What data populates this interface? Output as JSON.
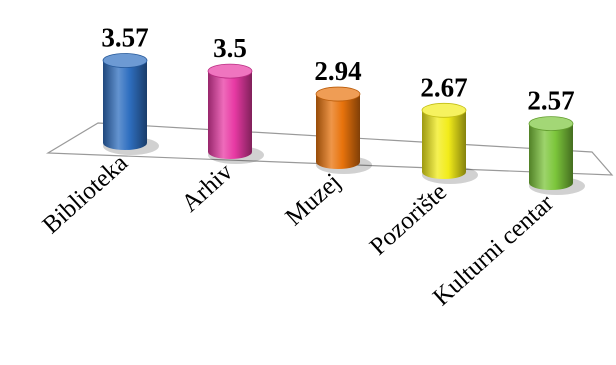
{
  "chart_data": {
    "type": "bar",
    "categories": [
      "Biblioteka",
      "Arhiv",
      "Muzej",
      "Pozorište",
      "Kulturni centar"
    ],
    "values": [
      3.57,
      3.5,
      2.94,
      2.67,
      2.57
    ],
    "value_labels": [
      "3.57",
      "3.5",
      "2.94",
      "2.67",
      "2.57"
    ],
    "colors": [
      "#2f6fc0",
      "#e83aa4",
      "#e8730c",
      "#f2ec1a",
      "#7cc63b"
    ],
    "title": "",
    "xlabel": "",
    "ylabel": "",
    "legend": "none",
    "grid": false
  }
}
